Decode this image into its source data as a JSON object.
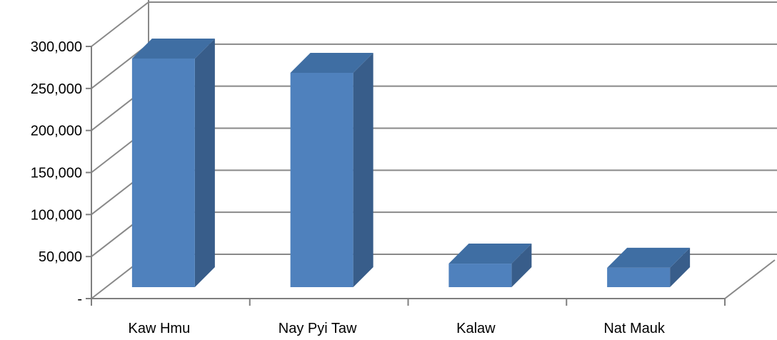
{
  "chart_data": {
    "type": "bar",
    "style": "3d-column",
    "categories": [
      "Kaw Hmu",
      "Nay Pyi Taw",
      "Kalaw",
      "Nat Mauk"
    ],
    "values": [
      272000,
      255000,
      28000,
      23000
    ],
    "ylim": [
      0,
      300000
    ],
    "yticks": [
      0,
      50000,
      100000,
      150000,
      200000,
      250000,
      300000
    ],
    "ytick_labels": [
      "-",
      "50,000",
      "100,000",
      "150,000",
      "200,000",
      "250,000",
      "300,000"
    ],
    "grid": true,
    "legend": "none",
    "colors": {
      "bar_front": "#4f81bd",
      "bar_side": "#385d8a",
      "bar_top": "#3f6ea3",
      "grid": "#898989",
      "axis": "#7f7f7f"
    }
  }
}
